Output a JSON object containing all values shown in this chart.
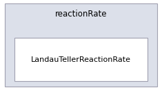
{
  "outer_box_label": "reactionRate",
  "inner_box_label": "LandauTellerReactionRate",
  "outer_bg_color": "#dce0ea",
  "inner_bg_color": "#ffffff",
  "outer_border_color": "#a0a0b0",
  "inner_border_color": "#a0a0b0",
  "text_color": "#000000",
  "fig_bg_color": "#ffffff",
  "outer_font_size": 8.5,
  "inner_font_size": 8.0,
  "fig_width": 2.35,
  "fig_height": 1.31,
  "dpi": 100
}
